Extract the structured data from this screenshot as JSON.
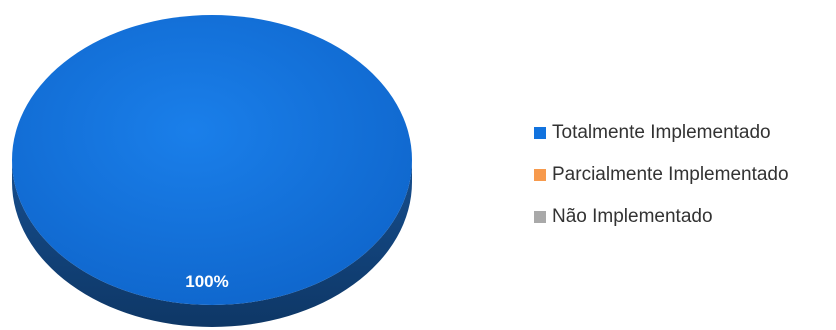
{
  "chart_data": {
    "type": "pie",
    "style": "3d",
    "title": "",
    "slices": [
      {
        "label": "Totalmente Implementado",
        "value": 100,
        "color": "#1273DE"
      },
      {
        "label": "Parcialmente Implementado",
        "value": 0,
        "color": "#F79A4D"
      },
      {
        "label": "Não Implementado",
        "value": 0,
        "color": "#A9A9A9"
      }
    ],
    "data_labels": [
      "100%"
    ],
    "legend_position": "right"
  },
  "legend": {
    "items": [
      {
        "label": "Totalmente Implementado",
        "color": "#1273DE"
      },
      {
        "label": "Parcialmente Implementado",
        "color": "#F79A4D"
      },
      {
        "label": "Não Implementado",
        "color": "#A9A9A9"
      }
    ]
  }
}
